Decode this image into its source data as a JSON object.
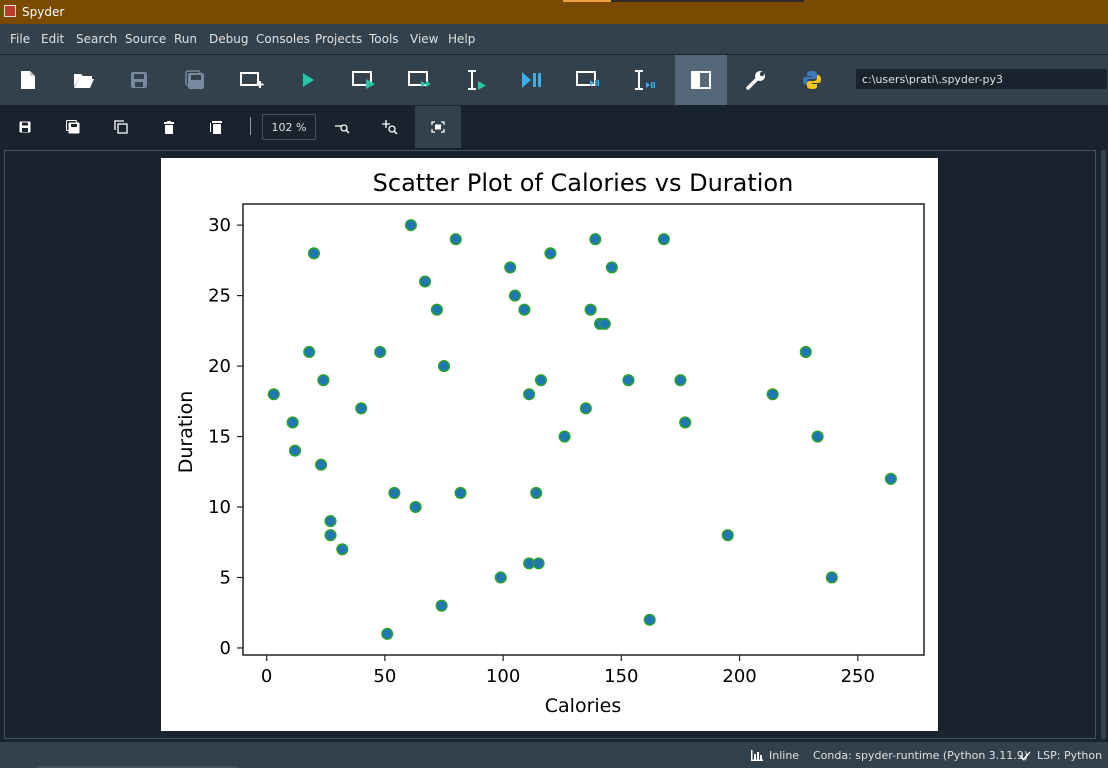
{
  "window": {
    "title": "Spyder"
  },
  "menu": [
    "File",
    "Edit",
    "Search",
    "Source",
    "Run",
    "Debug",
    "Consoles",
    "Projects",
    "Tools",
    "View",
    "Help"
  ],
  "toolbar": {
    "path": "c:\\users\\prati\\.spyder-py3",
    "icons": [
      "new-file",
      "open-file",
      "save",
      "save-all",
      "new-cell",
      "run",
      "run-cell",
      "run-cell-advance",
      "run-selection",
      "debug",
      "debug-cell",
      "debug-selection",
      "toggle-pane",
      "preferences",
      "python-path"
    ]
  },
  "plots_toolbar": {
    "zoom": "102 %",
    "icons": [
      "save-plot",
      "save-all-plots",
      "copy-plot",
      "remove-plot",
      "remove-all-plots",
      "zoom-out",
      "zoom-in",
      "fit-plot"
    ]
  },
  "status": {
    "inline": "Inline",
    "conda": "Conda: spyder-runtime (Python 3.11.9)",
    "lsp": "LSP: Python"
  },
  "colors": {
    "marker_fill": "#1f77b4",
    "marker_edge": "#2ca02c",
    "titlebar": "#7a4a00"
  },
  "chart_data": {
    "type": "scatter",
    "title": "Scatter Plot of Calories vs Duration",
    "xlabel": "Calories",
    "ylabel": "Duration",
    "xlim": [
      -10,
      278
    ],
    "ylim": [
      -0.5,
      31.5
    ],
    "xticks": [
      "0",
      "50",
      "100",
      "150",
      "200",
      "250"
    ],
    "yticks": [
      "0",
      "5",
      "10",
      "15",
      "20",
      "25",
      "30"
    ],
    "grid": false,
    "points": [
      [
        3,
        18
      ],
      [
        11,
        16
      ],
      [
        12,
        14
      ],
      [
        18,
        21
      ],
      [
        20,
        28
      ],
      [
        23,
        13
      ],
      [
        24,
        19
      ],
      [
        27,
        9
      ],
      [
        27,
        8
      ],
      [
        32,
        7
      ],
      [
        40,
        17
      ],
      [
        48,
        21
      ],
      [
        51,
        1
      ],
      [
        54,
        11
      ],
      [
        61,
        30
      ],
      [
        63,
        10
      ],
      [
        67,
        26
      ],
      [
        72,
        24
      ],
      [
        74,
        3
      ],
      [
        75,
        20
      ],
      [
        80,
        29
      ],
      [
        82,
        11
      ],
      [
        99,
        5
      ],
      [
        103,
        27
      ],
      [
        105,
        25
      ],
      [
        109,
        24
      ],
      [
        111,
        18
      ],
      [
        111,
        6
      ],
      [
        114,
        11
      ],
      [
        115,
        6
      ],
      [
        116,
        19
      ],
      [
        120,
        28
      ],
      [
        126,
        15
      ],
      [
        135,
        17
      ],
      [
        137,
        24
      ],
      [
        139,
        29
      ],
      [
        141,
        23
      ],
      [
        143,
        23
      ],
      [
        146,
        27
      ],
      [
        153,
        19
      ],
      [
        162,
        2
      ],
      [
        168,
        29
      ],
      [
        175,
        19
      ],
      [
        177,
        16
      ],
      [
        195,
        8
      ],
      [
        214,
        18
      ],
      [
        228,
        21
      ],
      [
        233,
        15
      ],
      [
        239,
        5
      ],
      [
        264,
        12
      ]
    ]
  }
}
